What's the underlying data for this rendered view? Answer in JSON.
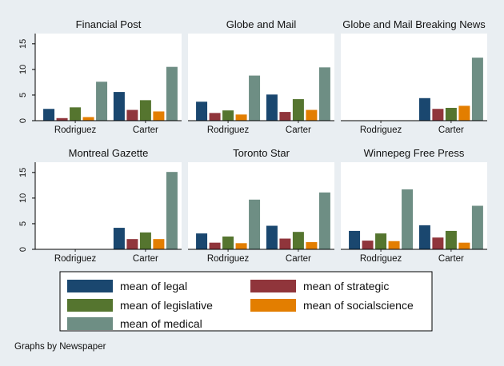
{
  "chart_data": {
    "type": "bar",
    "layout": "small-multiples",
    "categories": [
      "Rodriguez",
      "Carter"
    ],
    "ylim": [
      0,
      17
    ],
    "yticks": [
      0,
      5,
      10,
      15
    ],
    "series": [
      {
        "name": "mean of legal",
        "color": "#1a476f"
      },
      {
        "name": "mean of strategic",
        "color": "#90353b"
      },
      {
        "name": "mean of legislative",
        "color": "#55752f"
      },
      {
        "name": "mean of socialscience",
        "color": "#e37e00"
      },
      {
        "name": "mean of medical",
        "color": "#6e8e84"
      }
    ],
    "panels": [
      {
        "title": "Financial Post",
        "values": {
          "Rodriguez": [
            2.3,
            0.5,
            2.6,
            0.7,
            7.6
          ],
          "Carter": [
            5.6,
            2.1,
            4.0,
            1.8,
            10.5
          ]
        }
      },
      {
        "title": "Globe and Mail",
        "values": {
          "Rodriguez": [
            3.7,
            1.5,
            2.0,
            1.2,
            8.8
          ],
          "Carter": [
            5.1,
            1.7,
            4.2,
            2.1,
            10.4
          ]
        }
      },
      {
        "title": "Globe and Mail Breaking News",
        "values": {
          "Rodriguez": [
            null,
            null,
            null,
            null,
            null
          ],
          "Carter": [
            4.4,
            2.3,
            2.5,
            2.9,
            12.3
          ]
        }
      },
      {
        "title": "Montreal Gazette",
        "values": {
          "Rodriguez": [
            null,
            null,
            null,
            null,
            null
          ],
          "Carter": [
            4.2,
            2.0,
            3.3,
            2.0,
            15.1
          ]
        }
      },
      {
        "title": "Toronto Star",
        "values": {
          "Rodriguez": [
            3.1,
            1.3,
            2.5,
            1.2,
            9.7
          ],
          "Carter": [
            4.6,
            2.1,
            3.4,
            1.4,
            11.1
          ]
        }
      },
      {
        "title": "Winnepeg Free Press",
        "values": {
          "Rodriguez": [
            3.6,
            1.7,
            3.1,
            1.6,
            11.7
          ],
          "Carter": [
            4.7,
            2.3,
            3.6,
            1.3,
            8.5
          ]
        }
      }
    ],
    "legend_position": "bottom",
    "grid": false,
    "note": "Graphs by Newspaper"
  }
}
